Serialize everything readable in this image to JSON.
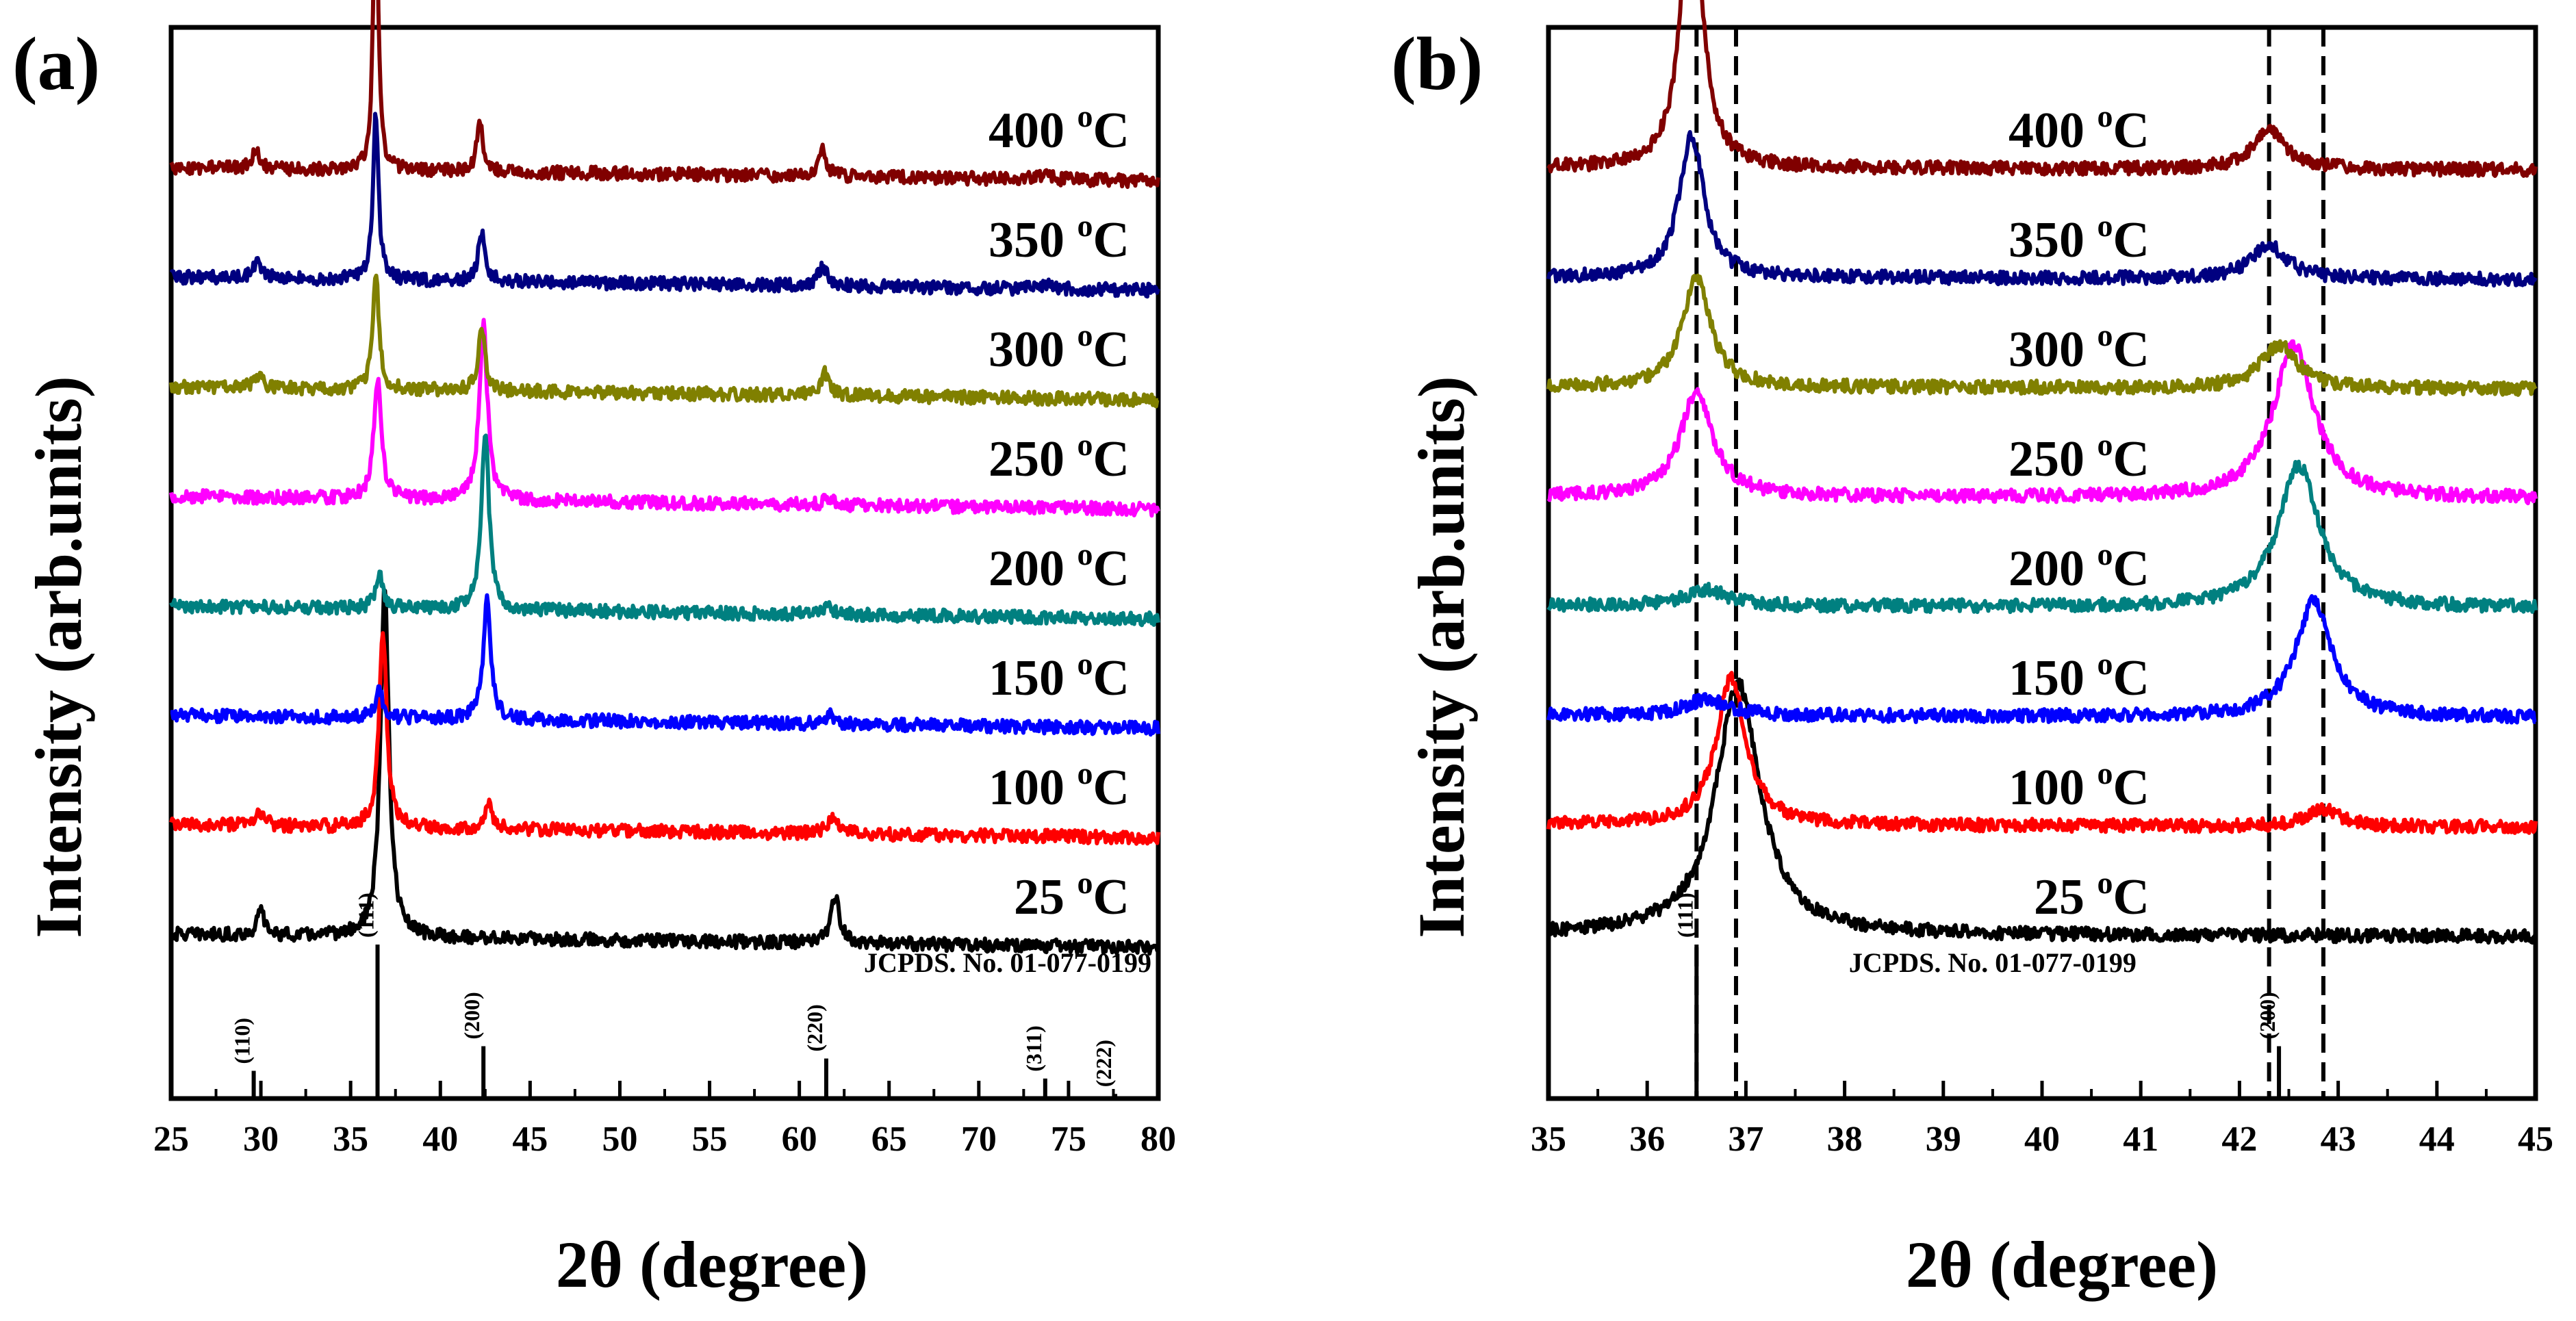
{
  "chart_data": [
    {
      "id": "a",
      "type": "line",
      "panel_label": "(a)",
      "xlabel": "2θ (degree)",
      "ylabel": "Intensity (arb.units)",
      "xlim": [
        25,
        80
      ],
      "xticks": [
        25,
        30,
        35,
        40,
        45,
        50,
        55,
        60,
        65,
        70,
        75,
        80
      ],
      "minor_step": 2.5,
      "reference": "JCPDS. No. 01-077-0199",
      "reference_peaks": [
        {
          "hkl": "(110)",
          "x": 29.6,
          "height": 0.18
        },
        {
          "hkl": "(111)",
          "x": 36.5,
          "height": 1.0
        },
        {
          "hkl": "(200)",
          "x": 42.4,
          "height": 0.34
        },
        {
          "hkl": "(220)",
          "x": 61.5,
          "height": 0.26
        },
        {
          "hkl": "(311)",
          "x": 73.7,
          "height": 0.13
        },
        {
          "hkl": "(222)",
          "x": 77.6,
          "height": 0.03
        }
      ],
      "series": [
        {
          "name": "25 °C",
          "temp": "25",
          "color": "#000000",
          "base": 1.0,
          "slope": -0.12,
          "peaks": [
            [
              30.0,
              0.22,
              0.25
            ],
            [
              36.9,
              3.2,
              0.28
            ],
            [
              62.0,
              0.42,
              0.3
            ]
          ]
        },
        {
          "name": "100 °C",
          "temp": "100",
          "color": "#ff0000",
          "base": 2.0,
          "slope": -0.12,
          "peaks": [
            [
              30.0,
              0.12,
              0.3
            ],
            [
              36.8,
              1.8,
              0.25
            ],
            [
              42.7,
              0.22,
              0.25
            ],
            [
              61.9,
              0.15,
              0.35
            ]
          ]
        },
        {
          "name": "150 °C",
          "temp": "150",
          "color": "#0000ff",
          "base": 3.0,
          "slope": -0.12,
          "peaks": [
            [
              36.6,
              0.25,
              0.25
            ],
            [
              42.6,
              1.1,
              0.25
            ],
            [
              61.7,
              0.08,
              0.3
            ]
          ]
        },
        {
          "name": "200 °C",
          "temp": "200",
          "color": "#008080",
          "base": 4.0,
          "slope": -0.12,
          "peaks": [
            [
              36.6,
              0.3,
              0.25
            ],
            [
              42.5,
              1.65,
              0.25
            ],
            [
              61.6,
              0.08,
              0.3
            ]
          ]
        },
        {
          "name": "250 °C",
          "temp": "250",
          "color": "#ff00ff",
          "base": 5.0,
          "slope": -0.12,
          "peaks": [
            [
              36.5,
              1.1,
              0.25
            ],
            [
              42.4,
              1.6,
              0.27
            ],
            [
              61.6,
              0.06,
              0.3
            ]
          ]
        },
        {
          "name": "300 °C",
          "temp": "300",
          "color": "#808000",
          "base": 6.0,
          "slope": -0.12,
          "peaks": [
            [
              29.9,
              0.1,
              0.3
            ],
            [
              36.4,
              1.1,
              0.2
            ],
            [
              42.3,
              0.6,
              0.22
            ],
            [
              61.4,
              0.2,
              0.3
            ]
          ]
        },
        {
          "name": "350 °C",
          "temp": "350",
          "color": "#000080",
          "base": 7.0,
          "slope": -0.12,
          "peaks": [
            [
              29.8,
              0.18,
              0.25
            ],
            [
              36.4,
              1.55,
              0.18
            ],
            [
              42.3,
              0.45,
              0.22
            ],
            [
              61.3,
              0.18,
              0.3
            ],
            [
              73.9,
              0.06,
              0.3
            ]
          ]
        },
        {
          "name": "400 °C",
          "temp": "400",
          "color": "#800000",
          "base": 8.0,
          "slope": -0.12,
          "peaks": [
            [
              29.7,
              0.18,
              0.25
            ],
            [
              36.4,
              3.0,
              0.15
            ],
            [
              42.2,
              0.45,
              0.2
            ],
            [
              61.3,
              0.25,
              0.25
            ],
            [
              73.7,
              0.06,
              0.3
            ]
          ]
        }
      ]
    },
    {
      "id": "b",
      "type": "line",
      "panel_label": "(b)",
      "xlabel": "2θ (degree)",
      "ylabel": "Intensity (arb.units)",
      "xlim": [
        35,
        45
      ],
      "xticks": [
        35,
        36,
        37,
        38,
        39,
        40,
        41,
        42,
        43,
        44,
        45
      ],
      "minor_step": 0.5,
      "reference": "JCPDS. No. 01-077-0199",
      "reference_peaks": [
        {
          "hkl": "(111)",
          "x": 36.5,
          "height": 1.0
        },
        {
          "hkl": "(200)",
          "x": 42.4,
          "height": 0.34
        }
      ],
      "dashed_lines": [
        36.5,
        36.9,
        42.3,
        42.85
      ],
      "series": [
        {
          "name": "25 °C",
          "temp": "25",
          "color": "#000000",
          "base": 1.0,
          "slope": -0.02,
          "peaks": [
            [
              36.92,
              2.3,
              0.27
            ]
          ]
        },
        {
          "name": "100 °C",
          "temp": "100",
          "color": "#ff0000",
          "base": 2.0,
          "slope": -0.02,
          "peaks": [
            [
              36.85,
              1.35,
              0.18
            ],
            [
              42.85,
              0.15,
              0.2
            ]
          ]
        },
        {
          "name": "150 °C",
          "temp": "150",
          "color": "#0000ff",
          "base": 3.0,
          "slope": -0.02,
          "peaks": [
            [
              36.6,
              0.15,
              0.25
            ],
            [
              42.75,
              1.05,
              0.22
            ]
          ]
        },
        {
          "name": "200 °C",
          "temp": "200",
          "color": "#008080",
          "base": 4.0,
          "slope": -0.02,
          "peaks": [
            [
              36.6,
              0.15,
              0.25
            ],
            [
              42.6,
              1.3,
              0.25
            ]
          ]
        },
        {
          "name": "250 °C",
          "temp": "250",
          "color": "#ff00ff",
          "base": 5.0,
          "slope": -0.02,
          "peaks": [
            [
              36.5,
              0.95,
              0.2
            ],
            [
              42.55,
              1.4,
              0.25
            ]
          ]
        },
        {
          "name": "300 °C",
          "temp": "300",
          "color": "#808000",
          "base": 6.0,
          "slope": -0.02,
          "peaks": [
            [
              36.5,
              1.0,
              0.17
            ],
            [
              42.4,
              0.4,
              0.22
            ]
          ]
        },
        {
          "name": "350 °C",
          "temp": "350",
          "color": "#000080",
          "base": 7.0,
          "slope": -0.02,
          "peaks": [
            [
              36.45,
              1.3,
              0.15
            ],
            [
              42.3,
              0.3,
              0.22
            ]
          ]
        },
        {
          "name": "400 °C",
          "temp": "400",
          "color": "#800000",
          "base": 8.0,
          "slope": -0.02,
          "peaks": [
            [
              36.45,
              2.8,
              0.12
            ],
            [
              42.3,
              0.35,
              0.2
            ]
          ]
        }
      ]
    }
  ]
}
